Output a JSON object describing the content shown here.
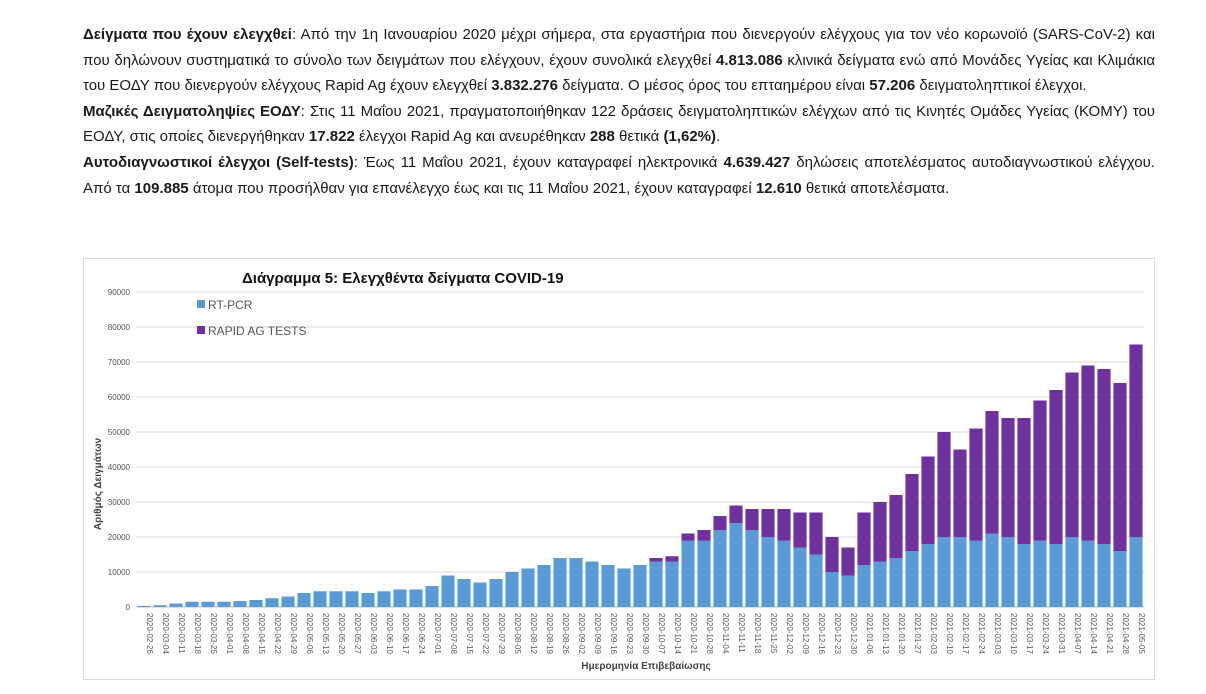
{
  "paragraphs": [
    {
      "parts": [
        {
          "t": "Δείγματα που έχουν ελεγχθεί",
          "b": true
        },
        {
          "t": ":  Από την 1η Ιανουαρίου 2020 μέχρι σήμερα, στα εργαστήρια που διενεργούν ελέγχους για τον νέο κορωνοϊό (SARS-CoV-2) και που δηλώνουν συστηματικά το σύνολο των δειγμάτων που ελέγχουν, έχουν συνολικά ελεγχθεί ",
          "b": false
        },
        {
          "t": "4.813.086",
          "b": true
        },
        {
          "t": " κλινικά δείγματα ενώ από Μονάδες Υγείας και Κλιμάκια του ΕΟΔΥ που διενεργούν ελέγχους Rapid Ag έχουν ελεγχθεί ",
          "b": false
        },
        {
          "t": "3.832.276",
          "b": true
        },
        {
          "t": " δείγματα. Ο μέσος όρος του επταημέρου είναι ",
          "b": false
        },
        {
          "t": "57.206",
          "b": true
        },
        {
          "t": " δειγματοληπτικοί έλεγχοι.",
          "b": false
        }
      ]
    },
    {
      "parts": [
        {
          "t": "Μαζικές Δειγματοληψίες ΕΟΔΥ",
          "b": true
        },
        {
          "t": ": Στις 11 Μαΐου 2021, πραγματοποιήθηκαν 122 δράσεις δειγματοληπτικών ελέγχων από τις Κινητές Ομάδες Υγείας (ΚΟΜΥ) του ΕΟΔΥ, στις οποίες διενεργήθηκαν ",
          "b": false
        },
        {
          "t": "17.822",
          "b": true
        },
        {
          "t": " έλεγχοι Rapid Ag και ανευρέθηκαν ",
          "b": false
        },
        {
          "t": "288",
          "b": true
        },
        {
          "t": " θετικά ",
          "b": false
        },
        {
          "t": "(1,62%)",
          "b": true
        },
        {
          "t": ".",
          "b": false
        }
      ]
    },
    {
      "parts": [
        {
          "t": "Αυτοδιαγνωστικοί έλεγχοι (Self-tests)",
          "b": true
        },
        {
          "t": ": Έως 11 Μαΐου 2021, έχουν καταγραφεί ηλεκτρονικά ",
          "b": false
        },
        {
          "t": "4.639.427",
          "b": true
        },
        {
          "t": " δηλώσεις αποτελέσματος αυτοδιαγνωστικού ελέγχου. Από τα ",
          "b": false
        },
        {
          "t": "109.885",
          "b": true
        },
        {
          "t": " άτομα που προσήλθαν για επανέλεγχο έως και τις 11 Μαΐου 2021, έχουν καταγραφεί ",
          "b": false
        },
        {
          "t": "12.610",
          "b": true
        },
        {
          "t": " θετικά αποτελέσματα.",
          "b": false
        }
      ]
    }
  ],
  "chart_data": {
    "type": "bar",
    "stacked": true,
    "title": "Διάγραμμα 5: Ελεγχθέντα δείγματα COVID-19",
    "xlabel": "Ημερομηνία Επιβεβαίωσης",
    "ylabel": "Αριθμός Δειγμάτων",
    "ylim": [
      0,
      90000
    ],
    "yticks": [
      0,
      10000,
      20000,
      30000,
      40000,
      50000,
      60000,
      70000,
      80000,
      90000
    ],
    "grid": true,
    "legend_position": "top-left",
    "colors": {
      "RT-PCR": "#5b9bd5",
      "RAPID AG TESTS": "#7030a0"
    },
    "categories": [
      "2020-02-26",
      "2020-03-04",
      "2020-03-11",
      "2020-03-18",
      "2020-03-25",
      "2020-04-01",
      "2020-04-08",
      "2020-04-15",
      "2020-04-22",
      "2020-04-29",
      "2020-05-06",
      "2020-05-13",
      "2020-05-20",
      "2020-05-27",
      "2020-06-03",
      "2020-06-10",
      "2020-06-17",
      "2020-06-24",
      "2020-07-01",
      "2020-07-08",
      "2020-07-15",
      "2020-07-22",
      "2020-07-29",
      "2020-08-05",
      "2020-08-12",
      "2020-08-19",
      "2020-08-26",
      "2020-09-02",
      "2020-09-09",
      "2020-09-16",
      "2020-09-23",
      "2020-09-30",
      "2020-10-07",
      "2020-10-14",
      "2020-10-21",
      "2020-10-28",
      "2020-11-04",
      "2020-11-11",
      "2020-11-18",
      "2020-11-25",
      "2020-12-02",
      "2020-12-09",
      "2020-12-16",
      "2020-12-23",
      "2020-12-30",
      "2021-01-06",
      "2021-01-13",
      "2021-01-20",
      "2021-01-27",
      "2021-02-03",
      "2021-02-10",
      "2021-02-17",
      "2021-02-24",
      "2021-03-03",
      "2021-03-10",
      "2021-03-17",
      "2021-03-24",
      "2021-03-31",
      "2021-04-07",
      "2021-04-14",
      "2021-04-21",
      "2021-04-28",
      "2021-05-05"
    ],
    "series": [
      {
        "name": "RT-PCR",
        "values": [
          300,
          500,
          1000,
          1500,
          1500,
          1500,
          1700,
          2000,
          2500,
          3000,
          4000,
          4500,
          4500,
          4500,
          4000,
          4500,
          5000,
          5000,
          6000,
          9000,
          8000,
          7000,
          8000,
          10000,
          11000,
          12000,
          14000,
          14000,
          13000,
          12000,
          11000,
          12000,
          13000,
          13000,
          19000,
          19000,
          22000,
          24000,
          22000,
          20000,
          19000,
          17000,
          15000,
          10000,
          9000,
          12000,
          13000,
          14000,
          16000,
          18000,
          20000,
          20000,
          19000,
          21000,
          20000,
          18000,
          19000,
          18000,
          20000,
          19000,
          18000,
          16000,
          20000
        ]
      },
      {
        "name": "RAPID AG TESTS",
        "values": [
          0,
          0,
          0,
          0,
          0,
          0,
          0,
          0,
          0,
          0,
          0,
          0,
          0,
          0,
          0,
          0,
          0,
          0,
          0,
          0,
          0,
          0,
          0,
          0,
          0,
          0,
          0,
          0,
          0,
          0,
          0,
          0,
          1000,
          1500,
          2000,
          3000,
          4000,
          5000,
          6000,
          8000,
          9000,
          10000,
          12000,
          10000,
          8000,
          15000,
          17000,
          18000,
          22000,
          25000,
          30000,
          25000,
          32000,
          35000,
          34000,
          36000,
          40000,
          44000,
          47000,
          50000,
          50000,
          48000,
          55000
        ]
      }
    ]
  }
}
